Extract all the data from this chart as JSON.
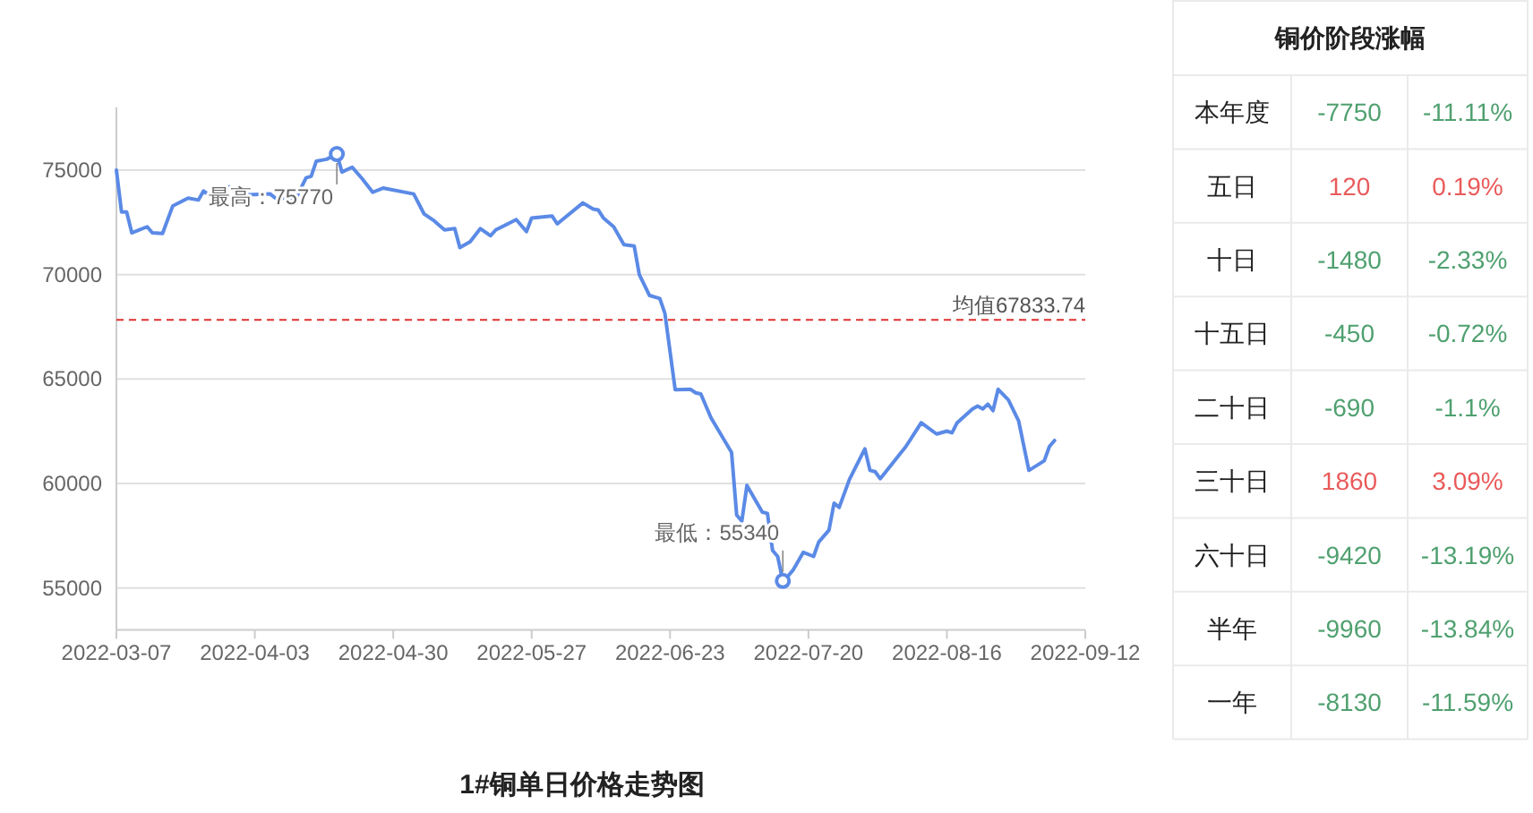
{
  "chart_data": [
    {
      "type": "line",
      "title": "1#铜单日价格走势图",
      "grid": "y",
      "xlim": [
        "2022-03-07",
        "2022-09-12"
      ],
      "xticks": [
        "2022-03-07",
        "2022-04-03",
        "2022-04-30",
        "2022-05-27",
        "2022-06-23",
        "2022-07-20",
        "2022-08-16",
        "2022-09-12"
      ],
      "ylim": [
        53000,
        78000
      ],
      "yticks": [
        55000,
        60000,
        65000,
        70000,
        75000
      ],
      "x": [
        "2022-03-07",
        "2022-03-08",
        "2022-03-09",
        "2022-03-10",
        "2022-03-13",
        "2022-03-14",
        "2022-03-16",
        "2022-03-18",
        "2022-03-21",
        "2022-03-23",
        "2022-03-24",
        "2022-03-27",
        "2022-03-29",
        "2022-03-31",
        "2022-04-06",
        "2022-04-07",
        "2022-04-11",
        "2022-04-13",
        "2022-04-14",
        "2022-04-15",
        "2022-04-17",
        "2022-04-19",
        "2022-04-20",
        "2022-04-22",
        "2022-04-24",
        "2022-04-26",
        "2022-04-28",
        "2022-05-04",
        "2022-05-06",
        "2022-05-08",
        "2022-05-10",
        "2022-05-12",
        "2022-05-13",
        "2022-05-15",
        "2022-05-17",
        "2022-05-19",
        "2022-05-20",
        "2022-05-24",
        "2022-05-26",
        "2022-05-27",
        "2022-05-31",
        "2022-06-01",
        "2022-06-06",
        "2022-06-08",
        "2022-06-09",
        "2022-06-10",
        "2022-06-12",
        "2022-06-14",
        "2022-06-16",
        "2022-06-17",
        "2022-06-19",
        "2022-06-21",
        "2022-06-22",
        "2022-06-24",
        "2022-06-27",
        "2022-06-28",
        "2022-06-29",
        "2022-07-01",
        "2022-07-05",
        "2022-07-06",
        "2022-07-07",
        "2022-07-08",
        "2022-07-11",
        "2022-07-12",
        "2022-07-13",
        "2022-07-14",
        "2022-07-15",
        "2022-07-16",
        "2022-07-17",
        "2022-07-19",
        "2022-07-21",
        "2022-07-22",
        "2022-07-24",
        "2022-07-25",
        "2022-07-26",
        "2022-07-28",
        "2022-07-31",
        "2022-08-01",
        "2022-08-02",
        "2022-08-03",
        "2022-08-08",
        "2022-08-11",
        "2022-08-14",
        "2022-08-16",
        "2022-08-17",
        "2022-08-18",
        "2022-08-21",
        "2022-08-22",
        "2022-08-23",
        "2022-08-24",
        "2022-08-25",
        "2022-08-26",
        "2022-08-28",
        "2022-08-30",
        "2022-09-01",
        "2022-09-04",
        "2022-09-05",
        "2022-09-06"
      ],
      "series": [
        {
          "color": "#5b8ae6",
          "values": [
            75000,
            73000,
            73000,
            72000,
            72290,
            72000,
            71970,
            73290,
            73660,
            73570,
            74000,
            73490,
            74200,
            73800,
            73860,
            73660,
            73640,
            74630,
            74710,
            75430,
            75520,
            75770,
            74910,
            75140,
            74570,
            73940,
            74140,
            73860,
            72910,
            72570,
            72140,
            72200,
            71290,
            71570,
            72200,
            71860,
            72140,
            72630,
            72060,
            72710,
            72800,
            72430,
            73430,
            73140,
            73090,
            72710,
            72290,
            71430,
            71370,
            70000,
            69000,
            68860,
            68140,
            64490,
            64510,
            64340,
            64290,
            63140,
            61490,
            58490,
            58200,
            59910,
            58630,
            58570,
            56800,
            56510,
            55340,
            55570,
            55860,
            56710,
            56510,
            57200,
            57770,
            59060,
            58860,
            60200,
            61660,
            60630,
            60570,
            60230,
            61770,
            62910,
            62370,
            62510,
            62430,
            62910,
            63570,
            63710,
            63570,
            63800,
            63490,
            64510,
            64000,
            63000,
            60630,
            61090,
            61770,
            62060
          ]
        }
      ],
      "ref_lines": [
        {
          "axis": "y",
          "value": 67833.74,
          "label": "均值67833.74",
          "color": "#e0302f",
          "line_style": "dashed"
        }
      ],
      "annotations": [
        {
          "text": "最高：75770",
          "x": "2022-04-19",
          "y": 75770
        },
        {
          "text": "最低：55340",
          "x": "2022-07-15",
          "y": 55340
        }
      ]
    },
    {
      "type": "other",
      "title": "铜价阶段涨幅",
      "categories": [
        "本年度",
        "五日",
        "十日",
        "十五日",
        "二十日",
        "三十日",
        "六十日",
        "半年",
        "一年"
      ],
      "data_labels": true,
      "series": [
        {
          "values": [
            -7750,
            120,
            -1480,
            -450,
            -690,
            1860,
            -9420,
            -9960,
            -8130
          ],
          "colors": [
            "#4fa06f",
            "#ea5a5a",
            "#4fa06f",
            "#4fa06f",
            "#4fa06f",
            "#ea5a5a",
            "#4fa06f",
            "#4fa06f",
            "#4fa06f"
          ]
        },
        {
          "values": [
            -11.11,
            0.19,
            -2.33,
            -0.72,
            -1.1,
            3.09,
            -13.19,
            -13.84,
            -11.59
          ],
          "value_labels": [
            "-11.11%",
            "0.19%",
            "-2.33%",
            "-0.72%",
            "-1.1%",
            "3.09%",
            "-13.19%",
            "-13.84%",
            "-11.59%"
          ],
          "colors": [
            "#4fa06f",
            "#ea5a5a",
            "#4fa06f",
            "#4fa06f",
            "#4fa06f",
            "#ea5a5a",
            "#4fa06f",
            "#4fa06f",
            "#4fa06f"
          ]
        }
      ]
    }
  ]
}
